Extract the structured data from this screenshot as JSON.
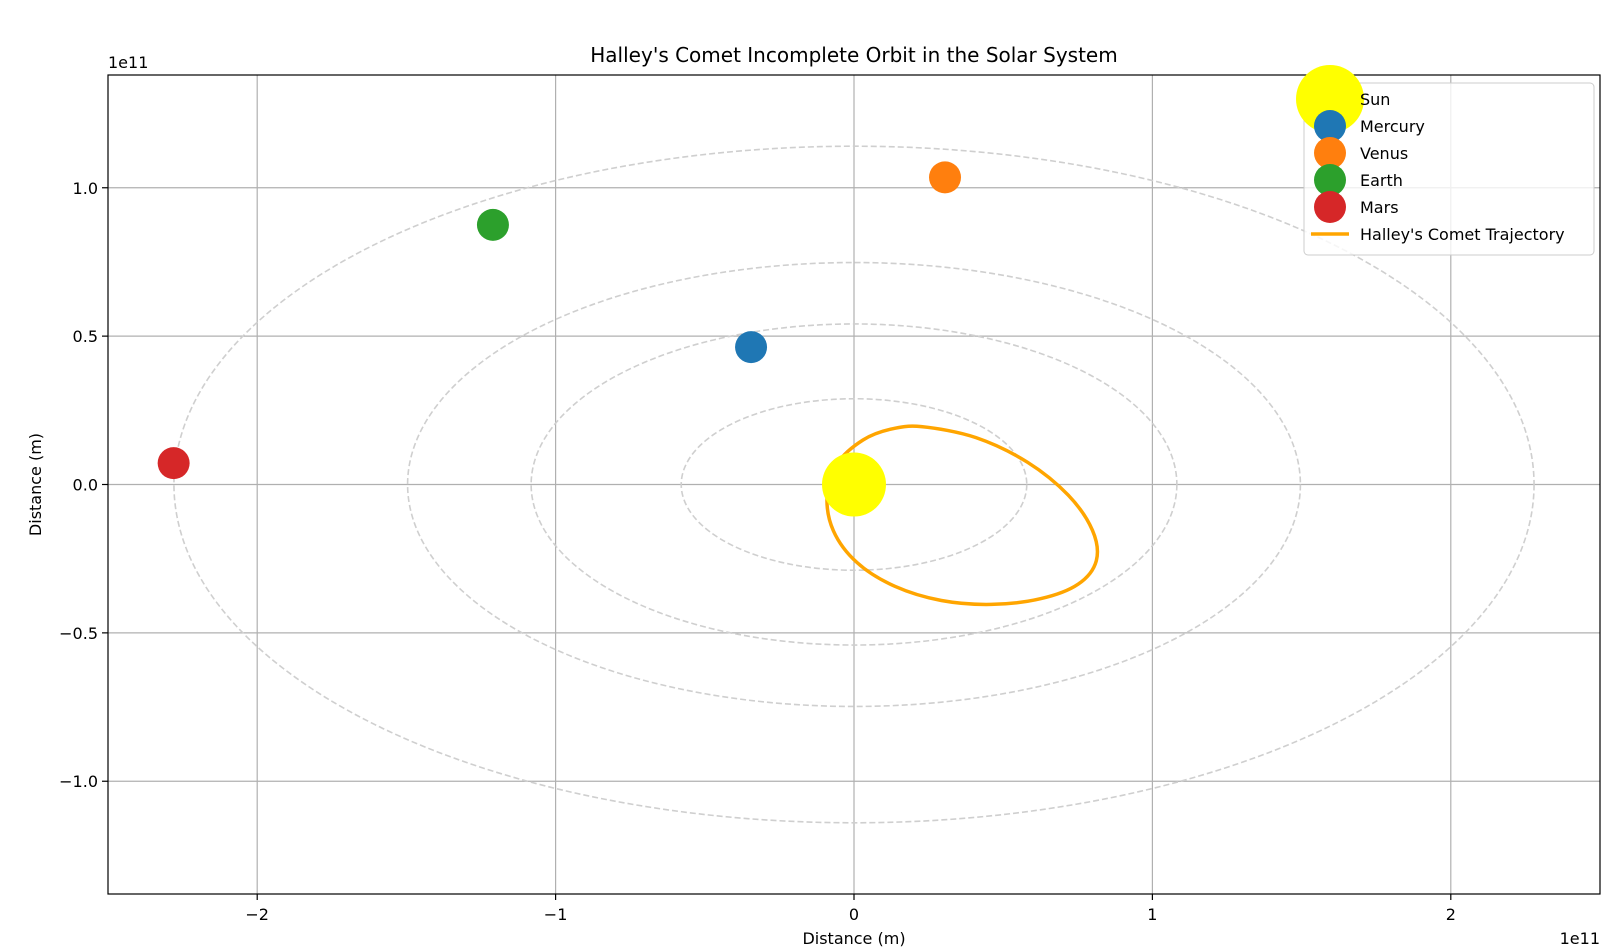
{
  "chart_data": {
    "type": "scatter",
    "title": "Halley's Comet Incomplete Orbit in the Solar System",
    "xlabel": "Distance (m)",
    "ylabel": "Distance (m)",
    "x_offset_text": "1e11",
    "y_offset_text": "1e11",
    "xlim": [
      -2.5,
      2.5
    ],
    "ylim": [
      -1.38,
      1.38
    ],
    "x_ticks": [
      -2,
      -1,
      0,
      1,
      2
    ],
    "x_tick_labels": [
      "−2",
      "−1",
      "0",
      "1",
      "2"
    ],
    "y_ticks": [
      -1.0,
      -0.5,
      0.0,
      0.5,
      1.0
    ],
    "y_tick_labels": [
      "−1.0",
      "−0.5",
      "0.0",
      "0.5",
      "1.0"
    ],
    "grid": true,
    "legend_position": "top-right",
    "orbits": [
      {
        "a": 0.579,
        "b": 0.289
      },
      {
        "a": 1.082,
        "b": 0.541
      },
      {
        "a": 1.496,
        "b": 0.748
      },
      {
        "a": 2.279,
        "b": 1.14
      }
    ],
    "bodies": [
      {
        "name": "Sun",
        "x": 0.0,
        "y": 0.0,
        "color": "#ffff00",
        "size": "large"
      },
      {
        "name": "Mercury",
        "x": -0.345,
        "y": 0.463,
        "color": "#1f77b4",
        "size": "small"
      },
      {
        "name": "Venus",
        "x": 0.305,
        "y": 1.035,
        "color": "#ff7f0e",
        "size": "small"
      },
      {
        "name": "Earth",
        "x": -1.21,
        "y": 0.875,
        "color": "#2ca02c",
        "size": "small"
      },
      {
        "name": "Mars",
        "x": -2.28,
        "y": 0.072,
        "color": "#d62728",
        "size": "small"
      }
    ],
    "series": [
      {
        "name": "Halley's Comet Trajectory",
        "color": "#ffa500",
        "points": [
          [
            0.226,
            0.195
          ],
          [
            0.409,
            0.158
          ],
          [
            0.581,
            0.075
          ],
          [
            0.718,
            -0.036
          ],
          [
            0.799,
            -0.154
          ],
          [
            0.812,
            -0.257
          ],
          [
            0.751,
            -0.336
          ],
          [
            0.625,
            -0.385
          ],
          [
            0.46,
            -0.404
          ],
          [
            0.293,
            -0.391
          ],
          [
            0.137,
            -0.343
          ],
          [
            0.01,
            -0.263
          ],
          [
            -0.069,
            -0.156
          ],
          [
            -0.09,
            -0.036
          ],
          [
            -0.054,
            0.073
          ],
          [
            0.03,
            0.15
          ],
          [
            0.121,
            0.186
          ],
          [
            0.226,
            0.195
          ]
        ]
      }
    ],
    "legend": [
      {
        "label": "Sun",
        "marker": "circle",
        "color": "#ffff00"
      },
      {
        "label": "Mercury",
        "marker": "circle",
        "color": "#1f77b4"
      },
      {
        "label": "Venus",
        "marker": "circle",
        "color": "#ff7f0e"
      },
      {
        "label": "Earth",
        "marker": "circle",
        "color": "#2ca02c"
      },
      {
        "label": "Mars",
        "marker": "circle",
        "color": "#d62728"
      },
      {
        "label": "Halley's Comet Trajectory",
        "marker": "line",
        "color": "#ffa500"
      }
    ]
  }
}
